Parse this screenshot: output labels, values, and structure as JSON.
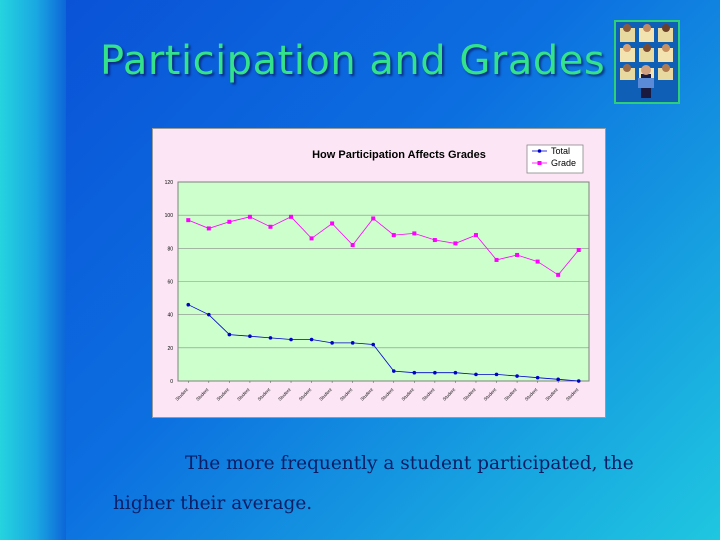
{
  "slide": {
    "title": "Participation and Grades",
    "caption": "The more frequently a student participated, the higher their average."
  },
  "colors": {
    "title": "#33e28a",
    "plot_area": "#ccffcc",
    "chart_background": "#fce6f6",
    "total_series": "#0000cc",
    "grade_series": "#ff00ff"
  },
  "clipart": {
    "icon": "classroom-students-icon"
  },
  "chart_data": {
    "type": "line",
    "title": "How Participation Affects Grades",
    "xlabel": "",
    "ylabel": "",
    "categories": [
      "Student",
      "Student",
      "Student",
      "Student",
      "Student",
      "Student",
      "Student",
      "Student",
      "Student",
      "Student",
      "Student",
      "Student",
      "Student",
      "Student",
      "Student",
      "Student",
      "Student",
      "Student",
      "Student",
      "Student"
    ],
    "ylim": [
      0,
      120
    ],
    "yticks": [
      "0",
      "20",
      "40",
      "60",
      "80",
      "100",
      "120"
    ],
    "grid": true,
    "legend": "top-right",
    "series": [
      {
        "name": "Total",
        "values": [
          46,
          40,
          28,
          27,
          26,
          25,
          25,
          23,
          23,
          22,
          6,
          5,
          5,
          5,
          4,
          4,
          3,
          2,
          1,
          0
        ]
      },
      {
        "name": "Grade",
        "values": [
          97,
          92,
          96,
          99,
          93,
          99,
          86,
          95,
          82,
          98,
          88,
          89,
          85,
          83,
          88,
          73,
          76,
          72,
          64,
          79
        ]
      }
    ]
  }
}
